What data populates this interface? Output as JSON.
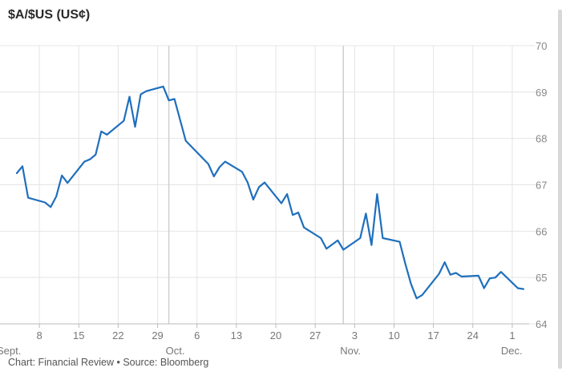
{
  "chart_data": {
    "type": "line",
    "title": "$A/$US (US¢)",
    "xlabel": "",
    "ylabel": "",
    "ylim": [
      64,
      70
    ],
    "yticks": [
      64,
      65,
      66,
      67,
      68,
      69,
      70
    ],
    "xlim": [
      "2018-09-03",
      "2018-12-04"
    ],
    "xticks": [
      {
        "date": "2018-09-08",
        "label": "8"
      },
      {
        "date": "2018-09-15",
        "label": "15"
      },
      {
        "date": "2018-09-22",
        "label": "22"
      },
      {
        "date": "2018-09-29",
        "label": "29"
      },
      {
        "date": "2018-10-06",
        "label": "6"
      },
      {
        "date": "2018-10-13",
        "label": "13"
      },
      {
        "date": "2018-10-20",
        "label": "20"
      },
      {
        "date": "2018-10-27",
        "label": "27"
      },
      {
        "date": "2018-11-03",
        "label": "3"
      },
      {
        "date": "2018-11-10",
        "label": "10"
      },
      {
        "date": "2018-11-17",
        "label": "17"
      },
      {
        "date": "2018-11-24",
        "label": "24"
      },
      {
        "date": "2018-12-01",
        "label": "1"
      }
    ],
    "month_labels": [
      {
        "date": "2018-09-01",
        "label": "Sept."
      },
      {
        "date": "2018-10-01",
        "label": "Oct."
      },
      {
        "date": "2018-11-01",
        "label": "Nov."
      },
      {
        "date": "2018-12-01",
        "label": "Dec."
      }
    ],
    "month_dividers": [
      "2018-10-01",
      "2018-11-01"
    ],
    "grid": true,
    "color": "#1f6fbd",
    "series": [
      {
        "x": [
          "2018-09-04",
          "2018-09-05",
          "2018-09-06",
          "2018-09-09",
          "2018-09-10",
          "2018-09-11",
          "2018-09-12",
          "2018-09-13",
          "2018-09-16",
          "2018-09-17",
          "2018-09-18",
          "2018-09-19",
          "2018-09-20",
          "2018-09-23",
          "2018-09-24",
          "2018-09-25",
          "2018-09-26",
          "2018-09-27",
          "2018-09-30",
          "2018-10-01",
          "2018-10-02",
          "2018-10-04",
          "2018-10-08",
          "2018-10-09",
          "2018-10-10",
          "2018-10-11",
          "2018-10-14",
          "2018-10-15",
          "2018-10-16",
          "2018-10-17",
          "2018-10-18",
          "2018-10-21",
          "2018-10-22",
          "2018-10-23",
          "2018-10-24",
          "2018-10-25",
          "2018-10-28",
          "2018-10-29",
          "2018-10-31",
          "2018-11-01",
          "2018-11-04",
          "2018-11-05",
          "2018-11-06",
          "2018-11-07",
          "2018-11-08",
          "2018-11-11",
          "2018-11-12",
          "2018-11-13",
          "2018-11-14",
          "2018-11-15",
          "2018-11-18",
          "2018-11-19",
          "2018-11-20",
          "2018-11-21",
          "2018-11-22",
          "2018-11-25",
          "2018-11-26",
          "2018-11-27",
          "2018-11-28",
          "2018-11-29",
          "2018-12-02",
          "2018-12-03"
        ],
        "values": [
          67.25,
          67.4,
          66.72,
          66.62,
          66.52,
          66.75,
          67.2,
          67.04,
          67.5,
          67.55,
          67.65,
          68.15,
          68.08,
          68.38,
          68.9,
          68.25,
          68.95,
          69.02,
          69.12,
          68.82,
          68.85,
          67.95,
          67.45,
          67.18,
          67.38,
          67.5,
          67.28,
          67.05,
          66.68,
          66.95,
          67.05,
          66.6,
          66.8,
          66.35,
          66.4,
          66.08,
          65.85,
          65.62,
          65.8,
          65.6,
          65.85,
          66.38,
          65.7,
          66.8,
          65.85,
          65.77,
          65.3,
          64.87,
          64.55,
          64.62,
          65.08,
          65.33,
          65.06,
          65.1,
          65.02,
          65.04,
          64.77,
          64.98,
          65.0,
          65.12,
          64.77,
          64.75
        ]
      }
    ]
  },
  "footer": {
    "text": "Chart: Financial Review • Source: Bloomberg"
  }
}
